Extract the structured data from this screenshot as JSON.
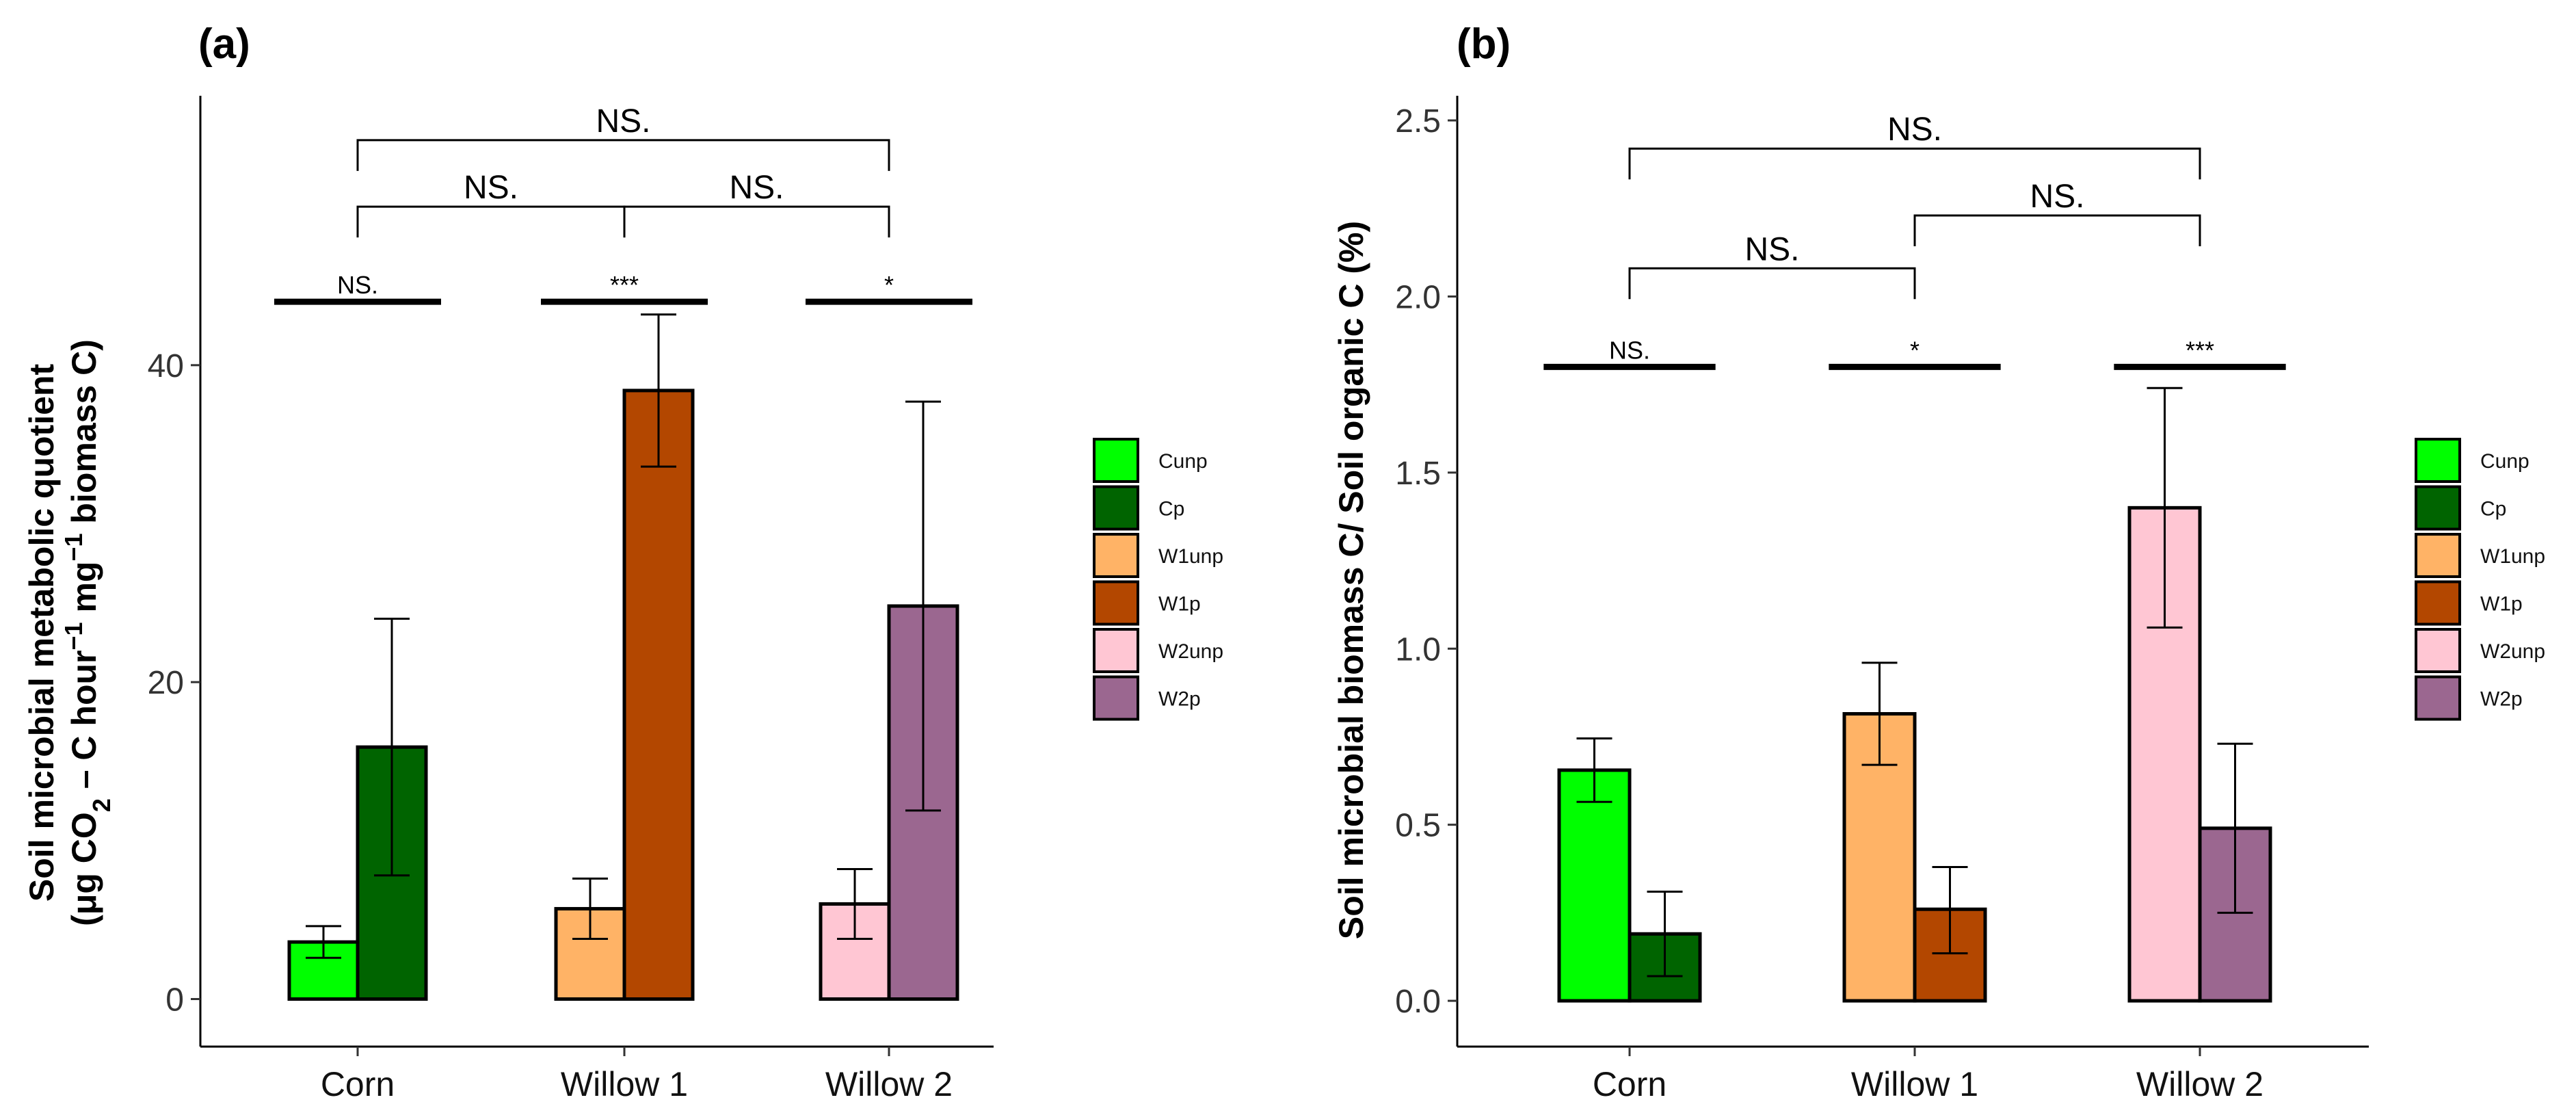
{
  "figure": {
    "legend_entries": [
      {
        "label": "Cunp",
        "color": "#00FF00"
      },
      {
        "label": "Cp",
        "color": "#006400"
      },
      {
        "label": "W1unp",
        "color": "#FFB366"
      },
      {
        "label": "W1p",
        "color": "#B34700"
      },
      {
        "label": "W2unp",
        "color": "#FFC6D3"
      },
      {
        "label": "W2p",
        "color": "#9B6790"
      }
    ]
  },
  "chart_data": [
    {
      "type": "bar",
      "panel": "(a)",
      "ylabel_line1": "Soil microbial metabolic quotient",
      "ylabel_line2": {
        "open": "(",
        "unit_a": "μg CO",
        "unit_a_sub": "2",
        "unit_b": " – C hour",
        "unit_b_sup": "−1",
        "unit_c": " mg",
        "unit_c_sup": "−1",
        "unit_d": " biomass C",
        "close": ")"
      },
      "categories": [
        "Corn",
        "Willow 1",
        "Willow 2"
      ],
      "ylim": [
        -3,
        57
      ],
      "yticks": [
        0,
        20,
        40
      ],
      "bars": [
        {
          "category": "Corn",
          "series": "Cunp",
          "value": 3.6,
          "err_low": 2.6,
          "err_high": 4.6
        },
        {
          "category": "Corn",
          "series": "Cp",
          "value": 15.9,
          "err_low": 7.8,
          "err_high": 24.0
        },
        {
          "category": "Willow 1",
          "series": "W1unp",
          "value": 5.7,
          "err_low": 3.8,
          "err_high": 7.6
        },
        {
          "category": "Willow 1",
          "series": "W1p",
          "value": 38.4,
          "err_low": 33.6,
          "err_high": 43.2
        },
        {
          "category": "Willow 2",
          "series": "W2unp",
          "value": 6.0,
          "err_low": 3.8,
          "err_high": 8.2
        },
        {
          "category": "Willow 2",
          "series": "W2p",
          "value": 24.8,
          "err_low": 11.9,
          "err_high": 37.7
        }
      ],
      "within_group_sig": [
        {
          "category": "Corn",
          "y": 44,
          "text": "NS."
        },
        {
          "category": "Willow 1",
          "y": 44,
          "text": "***"
        },
        {
          "category": "Willow 2",
          "y": 44,
          "text": "*"
        }
      ],
      "between_group_sig": [
        {
          "from": "Corn",
          "to": "Willow 2",
          "y": 54.2,
          "text": "NS."
        },
        {
          "from": "Corn",
          "to": "Willow 1",
          "y": 50.0,
          "text": "NS."
        },
        {
          "from": "Willow 1",
          "to": "Willow 2",
          "y": 50.0,
          "text": "NS."
        }
      ]
    },
    {
      "type": "bar",
      "panel": "(b)",
      "ylabel": "Soil microbial biomass C/ Soil organic C (%)",
      "categories": [
        "Corn",
        "Willow 1",
        "Willow 2"
      ],
      "ylim": [
        -0.13,
        2.57
      ],
      "yticks": [
        0.0,
        0.5,
        1.0,
        1.5,
        2.0,
        2.5
      ],
      "ytick_labels": [
        "0.0",
        "0.5",
        "1.0",
        "1.5",
        "2.0",
        "2.5"
      ],
      "bars": [
        {
          "category": "Corn",
          "series": "Cunp",
          "value": 0.655,
          "err_low": 0.565,
          "err_high": 0.745
        },
        {
          "category": "Corn",
          "series": "Cp",
          "value": 0.19,
          "err_low": 0.07,
          "err_high": 0.31
        },
        {
          "category": "Willow 1",
          "series": "W1unp",
          "value": 0.815,
          "err_low": 0.67,
          "err_high": 0.96
        },
        {
          "category": "Willow 1",
          "series": "W1p",
          "value": 0.26,
          "err_low": 0.135,
          "err_high": 0.38
        },
        {
          "category": "Willow 2",
          "series": "W2unp",
          "value": 1.4,
          "err_low": 1.06,
          "err_high": 1.74
        },
        {
          "category": "Willow 2",
          "series": "W2p",
          "value": 0.49,
          "err_low": 0.25,
          "err_high": 0.73
        }
      ],
      "within_group_sig": [
        {
          "category": "Corn",
          "y": 1.8,
          "text": "NS."
        },
        {
          "category": "Willow 1",
          "y": 1.8,
          "text": "*"
        },
        {
          "category": "Willow 2",
          "y": 1.8,
          "text": "***"
        }
      ],
      "between_group_sig": [
        {
          "from": "Corn",
          "to": "Willow 2",
          "y": 2.42,
          "text": "NS."
        },
        {
          "from": "Willow 1",
          "to": "Willow 2",
          "y": 2.23,
          "text": "NS."
        },
        {
          "from": "Corn",
          "to": "Willow 1",
          "y": 2.08,
          "text": "NS."
        }
      ]
    }
  ]
}
